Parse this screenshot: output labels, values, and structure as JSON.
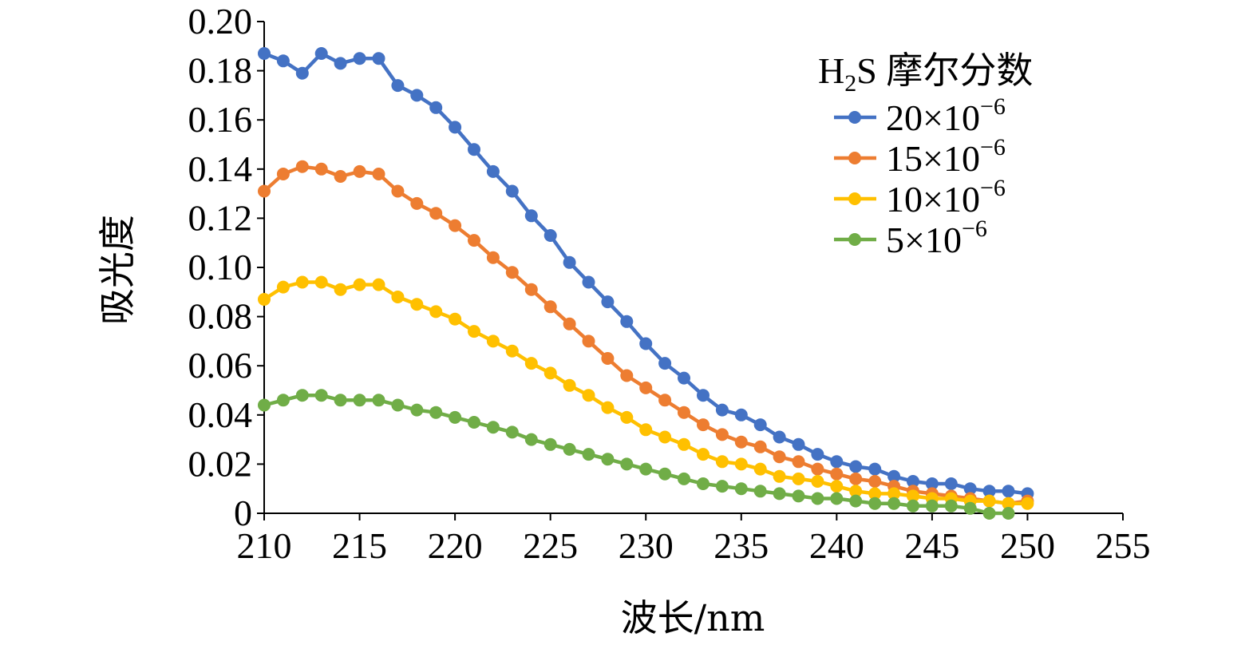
{
  "chart_data": {
    "type": "line",
    "xlabel": "波长/nm",
    "ylabel": "吸光度",
    "xlim": [
      210,
      255
    ],
    "ylim": [
      0,
      0.2
    ],
    "x_ticks": [
      "210",
      "215",
      "220",
      "225",
      "230",
      "235",
      "240",
      "245",
      "250",
      "255"
    ],
    "y_ticks": [
      "0",
      "0.02",
      "0.04",
      "0.06",
      "0.08",
      "0.10",
      "0.12",
      "0.14",
      "0.16",
      "0.18",
      "0.20"
    ],
    "grid": false,
    "legend_position": "top-right",
    "legend_title": {
      "base": "H",
      "sub": "2",
      "rest": "S 摩尔分数"
    },
    "x": [
      210,
      211,
      212,
      213,
      214,
      215,
      216,
      217,
      218,
      219,
      220,
      221,
      222,
      223,
      224,
      225,
      226,
      227,
      228,
      229,
      230,
      231,
      232,
      233,
      234,
      235,
      236,
      237,
      238,
      239,
      240,
      241,
      242,
      243,
      244,
      245,
      246,
      247,
      248,
      249,
      250
    ],
    "series": [
      {
        "name": "20×10⁻⁶",
        "label_base": "20×10",
        "label_exp": "−6",
        "color": "#4472C4",
        "values": [
          0.187,
          0.184,
          0.179,
          0.187,
          0.183,
          0.185,
          0.185,
          0.174,
          0.17,
          0.165,
          0.157,
          0.148,
          0.139,
          0.131,
          0.121,
          0.113,
          0.102,
          0.094,
          0.086,
          0.078,
          0.069,
          0.061,
          0.055,
          0.048,
          0.042,
          0.04,
          0.036,
          0.031,
          0.028,
          0.024,
          0.021,
          0.019,
          0.018,
          0.015,
          0.013,
          0.012,
          0.012,
          0.01,
          0.009,
          0.009,
          0.008
        ]
      },
      {
        "name": "15×10⁻⁶",
        "label_base": "15×10",
        "label_exp": "−6",
        "color": "#ED7D31",
        "values": [
          0.131,
          0.138,
          0.141,
          0.14,
          0.137,
          0.139,
          0.138,
          0.131,
          0.126,
          0.122,
          0.117,
          0.111,
          0.104,
          0.098,
          0.091,
          0.084,
          0.077,
          0.07,
          0.063,
          0.056,
          0.051,
          0.046,
          0.041,
          0.036,
          0.032,
          0.029,
          0.027,
          0.023,
          0.021,
          0.018,
          0.016,
          0.014,
          0.013,
          0.011,
          0.009,
          0.008,
          0.007,
          0.006,
          0.005,
          0.004,
          0.005
        ]
      },
      {
        "name": "10×10⁻⁶",
        "label_base": "10×10",
        "label_exp": "−6",
        "color": "#FFC000",
        "values": [
          0.087,
          0.092,
          0.094,
          0.094,
          0.091,
          0.093,
          0.093,
          0.088,
          0.085,
          0.082,
          0.079,
          0.074,
          0.07,
          0.066,
          0.061,
          0.057,
          0.052,
          0.048,
          0.043,
          0.039,
          0.034,
          0.031,
          0.028,
          0.024,
          0.021,
          0.02,
          0.018,
          0.015,
          0.014,
          0.013,
          0.011,
          0.009,
          0.008,
          0.008,
          0.007,
          0.006,
          0.006,
          0.005,
          0.005,
          0.004,
          0.004
        ]
      },
      {
        "name": "5×10⁻⁶",
        "label_base": "5×10",
        "label_exp": "−6",
        "color": "#70AD47",
        "values": [
          0.044,
          0.046,
          0.048,
          0.048,
          0.046,
          0.046,
          0.046,
          0.044,
          0.042,
          0.041,
          0.039,
          0.037,
          0.035,
          0.033,
          0.03,
          0.028,
          0.026,
          0.024,
          0.022,
          0.02,
          0.018,
          0.016,
          0.014,
          0.012,
          0.011,
          0.01,
          0.009,
          0.008,
          0.007,
          0.006,
          0.006,
          0.005,
          0.004,
          0.004,
          0.003,
          0.003,
          0.003,
          0.002,
          0.0,
          0.0,
          null
        ]
      }
    ]
  }
}
